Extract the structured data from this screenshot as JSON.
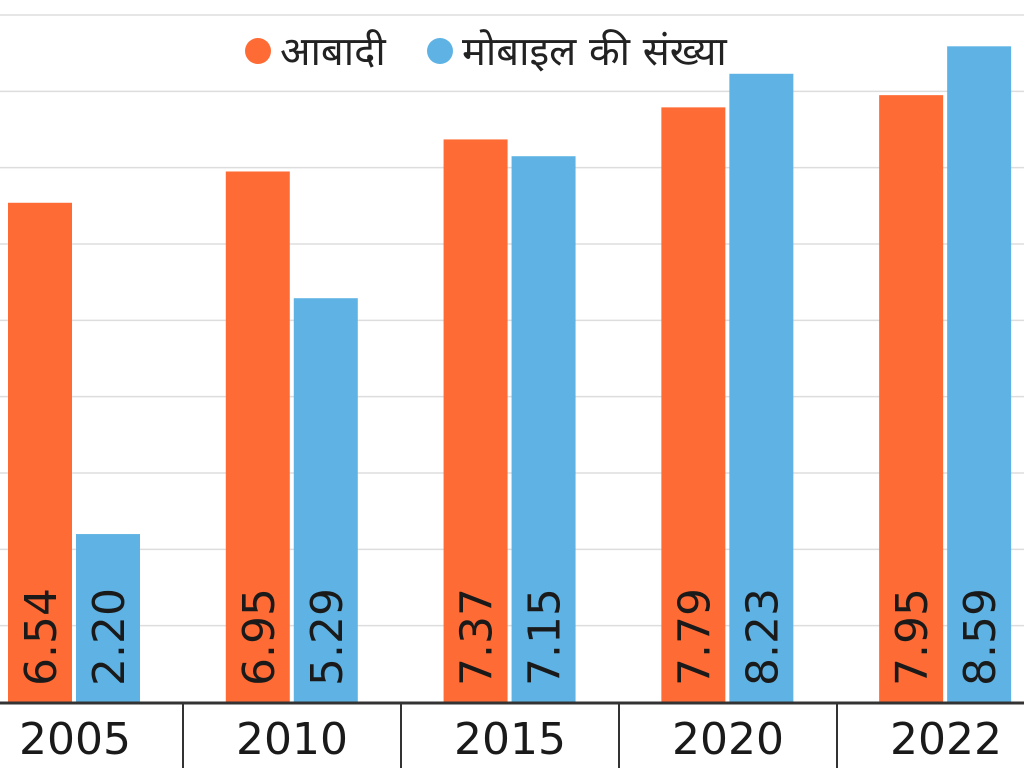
{
  "chart_data": {
    "type": "bar",
    "categories": [
      "2005",
      "2010",
      "2015",
      "2020",
      "2022"
    ],
    "series": [
      {
        "name": "आबादी",
        "color": "#ff6b35",
        "values": [
          6.54,
          6.95,
          7.37,
          7.79,
          7.95
        ]
      },
      {
        "name": "मोबाइल की संख्या",
        "color": "#5eb3e4",
        "values": [
          2.2,
          5.29,
          7.15,
          8.23,
          8.59
        ]
      }
    ],
    "value_labels": [
      [
        "6.54",
        "6.95",
        "7.37",
        "7.79",
        "7.95"
      ],
      [
        "2.20",
        "5.29",
        "7.15",
        "8.23",
        "8.59"
      ]
    ],
    "title": "",
    "xlabel": "",
    "ylabel": "",
    "ylim": [
      0,
      9
    ],
    "grid": true,
    "legend_position": "top-center"
  }
}
